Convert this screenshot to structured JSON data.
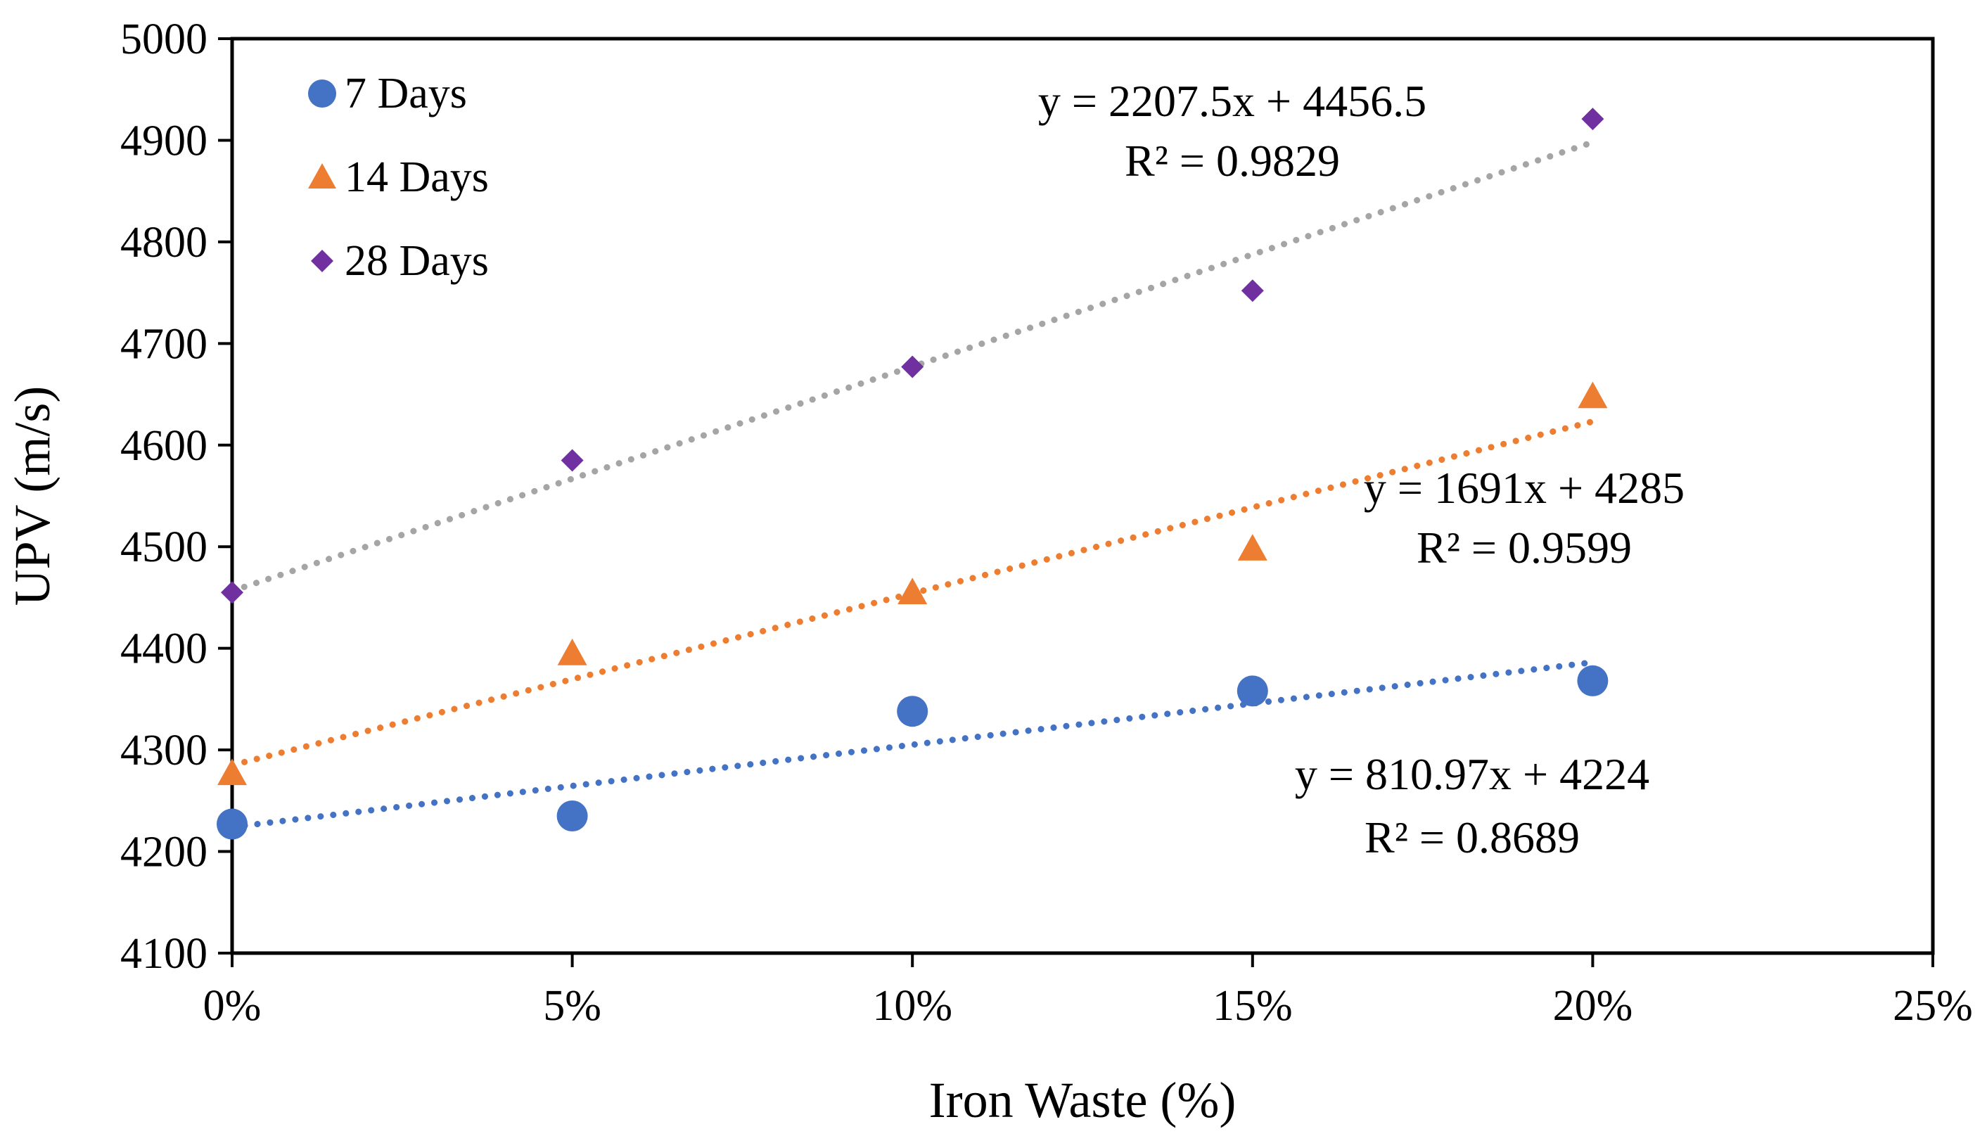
{
  "chart_data": {
    "type": "scatter",
    "title": "",
    "xlabel": "Iron Waste (%)",
    "ylabel": "UPV (m/s)",
    "xlim": [
      0,
      0.25
    ],
    "ylim": [
      4100,
      5000
    ],
    "x_ticks": [
      {
        "value": 0,
        "label": "0%"
      },
      {
        "value": 0.05,
        "label": "5%"
      },
      {
        "value": 0.1,
        "label": "10%"
      },
      {
        "value": 0.15,
        "label": "15%"
      },
      {
        "value": 0.2,
        "label": "20%"
      },
      {
        "value": 0.25,
        "label": "25%"
      }
    ],
    "y_ticks": [
      {
        "value": 4100,
        "label": "4100"
      },
      {
        "value": 4200,
        "label": "4200"
      },
      {
        "value": 4300,
        "label": "4300"
      },
      {
        "value": 4400,
        "label": "4400"
      },
      {
        "value": 4500,
        "label": "4500"
      },
      {
        "value": 4600,
        "label": "4600"
      },
      {
        "value": 4700,
        "label": "4700"
      },
      {
        "value": 4800,
        "label": "4800"
      },
      {
        "value": 4900,
        "label": "4900"
      },
      {
        "value": 5000,
        "label": "5000"
      }
    ],
    "grid": false,
    "legend_position": "top-left",
    "series": [
      {
        "name": "7 Days",
        "marker": "circle",
        "color": "#4472C4",
        "x": [
          0,
          0.05,
          0.1,
          0.15,
          0.2
        ],
        "y": [
          4227,
          4235,
          4338,
          4358,
          4368
        ],
        "trendline": {
          "slope": 810.97,
          "intercept": 4224,
          "color": "#4472C4"
        },
        "equation": "y = 810.97x + 4224",
        "r2": "R² = 0.8689"
      },
      {
        "name": "14 Days",
        "marker": "triangle",
        "color": "#ED7D31",
        "x": [
          0,
          0.05,
          0.1,
          0.15,
          0.2
        ],
        "y": [
          4277,
          4395,
          4455,
          4498,
          4648
        ],
        "trendline": {
          "slope": 1691,
          "intercept": 4285,
          "color": "#ED7D31"
        },
        "equation": "y = 1691x + 4285",
        "r2": "R² = 0.9599"
      },
      {
        "name": "28 Days",
        "marker": "diamond",
        "color": "#7030A0",
        "x": [
          0,
          0.05,
          0.1,
          0.15,
          0.2
        ],
        "y": [
          4455,
          4585,
          4677,
          4752,
          4921
        ],
        "trendline": {
          "slope": 2207.5,
          "intercept": 4456.5,
          "color": "#A5A5A5"
        },
        "equation": "y = 2207.5x + 4456.5",
        "r2": "R² = 0.9829"
      }
    ]
  }
}
